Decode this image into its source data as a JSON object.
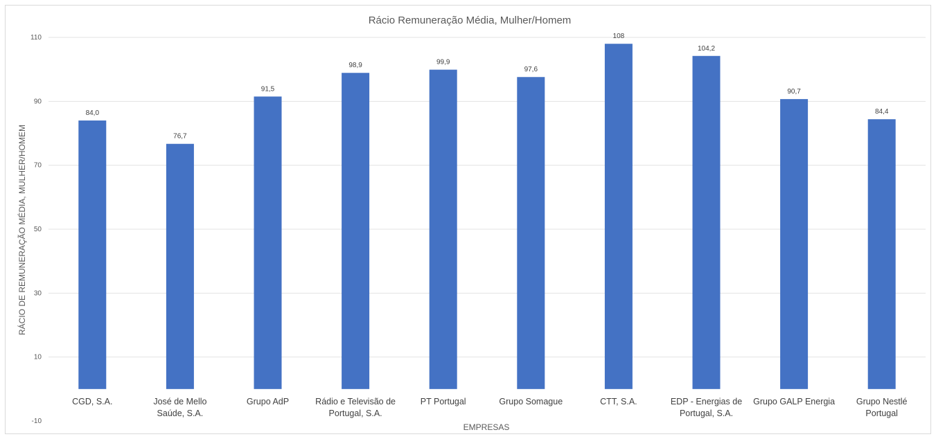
{
  "chart_data": {
    "type": "bar",
    "title": "Rácio Remuneração Média, Mulher/Homem",
    "xlabel": "EMPRESAS",
    "ylabel": "RÁCIO DE REMUNERAÇÃO MÉDIA, MULHER/HOMEM",
    "ylim": [
      -10,
      110
    ],
    "yticks": [
      -10,
      10,
      30,
      50,
      70,
      90,
      110
    ],
    "grid": true,
    "bar_color": "#4472c4",
    "categories": [
      [
        "CGD, S.A."
      ],
      [
        "José de Mello",
        "Saúde, S.A."
      ],
      [
        "Grupo AdP"
      ],
      [
        "Rádio e Televisão de",
        "Portugal, S.A."
      ],
      [
        "PT Portugal"
      ],
      [
        "Grupo Somague"
      ],
      [
        "CTT, S.A."
      ],
      [
        "EDP - Energias de",
        "Portugal, S.A."
      ],
      [
        "Grupo GALP Energia"
      ],
      [
        "Grupo Nestlé",
        "Portugal"
      ]
    ],
    "values": [
      84.0,
      76.7,
      91.5,
      98.9,
      99.9,
      97.6,
      108,
      104.2,
      90.7,
      84.4
    ],
    "data_labels": [
      "84,0",
      "76,7",
      "91,5",
      "98,9",
      "99,9",
      "97,6",
      "108",
      "104,2",
      "90,7",
      "84,4"
    ]
  }
}
